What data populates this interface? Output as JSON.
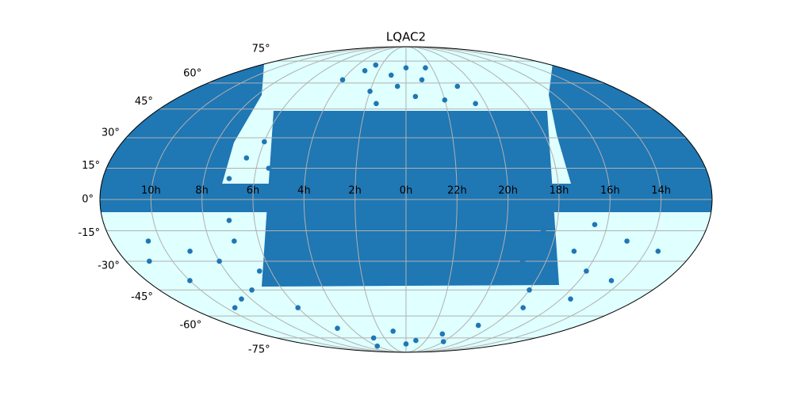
{
  "chart_data": {
    "type": "scatter",
    "projection": "mollweide",
    "title": "LQAC2",
    "color": "#1f77b4",
    "background": "#e0ffff",
    "grid": true,
    "ylim": [
      -90,
      90
    ],
    "x": [
      0,
      1,
      23,
      2,
      22,
      3,
      21,
      1.5,
      23.5,
      0.5,
      4,
      20.5,
      2.5,
      22.5,
      7,
      8,
      9,
      10,
      7.5,
      9.5,
      6.5,
      8.5,
      10.5,
      11,
      6,
      7,
      15,
      16,
      17,
      18,
      14.5,
      16.5,
      17.5,
      18.5,
      15.5,
      19,
      13.5,
      0,
      3,
      21,
      5,
      19,
      1,
      23,
      4,
      20,
      6.5,
      7,
      6,
      5.5
    ],
    "y": [
      70,
      65,
      62,
      55,
      50,
      68,
      58,
      48,
      52,
      58,
      62,
      48,
      72,
      70,
      -20,
      -30,
      -25,
      -40,
      -45,
      -55,
      -35,
      -50,
      -20,
      -30,
      -55,
      -10,
      -20,
      -35,
      -25,
      -45,
      -40,
      -12,
      -55,
      -15,
      -50,
      -30,
      -25,
      -80,
      -75,
      -72,
      -68,
      -66,
      -70,
      -77,
      -82,
      -78,
      20,
      10,
      28,
      15
    ],
    "xticks": [
      {
        "value": 10,
        "label": "10h"
      },
      {
        "value": 8,
        "label": "8h"
      },
      {
        "value": 6,
        "label": "6h"
      },
      {
        "value": 4,
        "label": "4h"
      },
      {
        "value": 2,
        "label": "2h"
      },
      {
        "value": 0,
        "label": "0h"
      },
      {
        "value": 22,
        "label": "22h"
      },
      {
        "value": 20,
        "label": "20h"
      },
      {
        "value": 18,
        "label": "18h"
      },
      {
        "value": 16,
        "label": "16h"
      },
      {
        "value": 14,
        "label": "14h"
      }
    ],
    "yticks": [
      {
        "value": 75,
        "label": "75°"
      },
      {
        "value": 60,
        "label": "60°"
      },
      {
        "value": 45,
        "label": "45°"
      },
      {
        "value": 30,
        "label": "30°"
      },
      {
        "value": 15,
        "label": "15°"
      },
      {
        "value": 0,
        "label": "0°"
      },
      {
        "value": -15,
        "label": "-15°"
      },
      {
        "value": -30,
        "label": "-30°"
      },
      {
        "value": -45,
        "label": "-45°"
      },
      {
        "value": -60,
        "label": "-60°"
      },
      {
        "value": -75,
        "label": "-75°"
      }
    ]
  }
}
